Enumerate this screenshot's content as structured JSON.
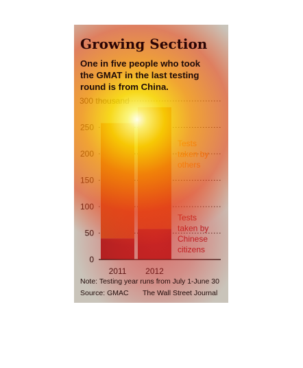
{
  "chart_data": {
    "type": "bar",
    "stacked": true,
    "title": "Growing Section",
    "subtitle": "One in five people who took the GMAT in the last testing round is from China.",
    "categories": [
      "2011",
      "2012"
    ],
    "series": [
      {
        "name": "Tests taken by Chinese citizens",
        "values": [
          40,
          58
        ],
        "color": "#a51f1f"
      },
      {
        "name": "Tests taken by others",
        "values": [
          218,
          230
        ],
        "color": "#c7541d"
      }
    ],
    "yticks": [
      "0",
      "50",
      "100",
      "150",
      "200",
      "250",
      "300 thousand"
    ],
    "ylim": [
      0,
      300
    ],
    "grid": true,
    "legend_position": "right",
    "note": "Note: Testing year runs from July 1-June 30",
    "source": "Source: GMAC",
    "credit": "The Wall Street Journal"
  },
  "subtitle_lines": [
    "One in five people who took",
    "the GMAT in the last testing",
    "round is from China."
  ],
  "legend": {
    "others_lines": [
      "Tests",
      "taken by",
      "others"
    ],
    "chinese_lines": [
      "Tests",
      "taken by",
      "Chinese",
      "citizens"
    ]
  }
}
